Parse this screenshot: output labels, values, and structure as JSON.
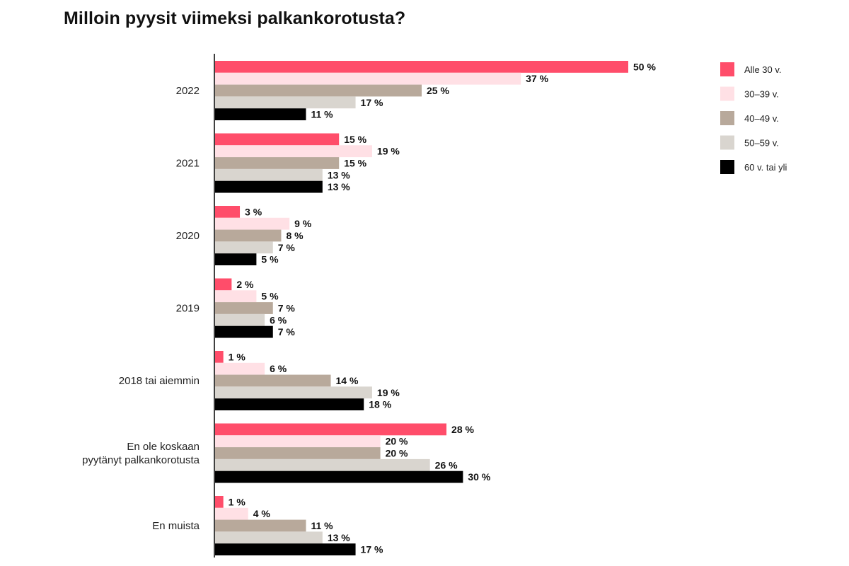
{
  "chart_data": {
    "type": "bar",
    "orientation": "horizontal",
    "title": "Milloin pyysit viimeksi palkankorotusta?",
    "value_suffix": " %",
    "categories": [
      [
        "2022"
      ],
      [
        "2021"
      ],
      [
        "2020"
      ],
      [
        "2019"
      ],
      [
        "2018 tai aiemmin"
      ],
      [
        "En ole koskaan",
        "pyytänyt palkankorotusta"
      ],
      [
        "En muista"
      ]
    ],
    "series": [
      {
        "name": "Alle 30 v.",
        "color": "#ff4d6a",
        "values": [
          50,
          15,
          3,
          2,
          1,
          28,
          1
        ]
      },
      {
        "name": "30–39 v.",
        "color": "#ffe0e5",
        "values": [
          37,
          19,
          9,
          5,
          6,
          20,
          4
        ]
      },
      {
        "name": "40–49 v.",
        "color": "#b8a99b",
        "values": [
          25,
          15,
          8,
          7,
          14,
          20,
          11
        ]
      },
      {
        "name": "50–59 v.",
        "color": "#d9d5cf",
        "values": [
          17,
          13,
          7,
          6,
          19,
          26,
          13
        ]
      },
      {
        "name": "60 v. tai yli",
        "color": "#000000",
        "values": [
          11,
          13,
          5,
          7,
          18,
          30,
          17
        ]
      }
    ],
    "xlim": [
      0,
      50
    ],
    "grid": false,
    "legend_position": "top-right"
  }
}
